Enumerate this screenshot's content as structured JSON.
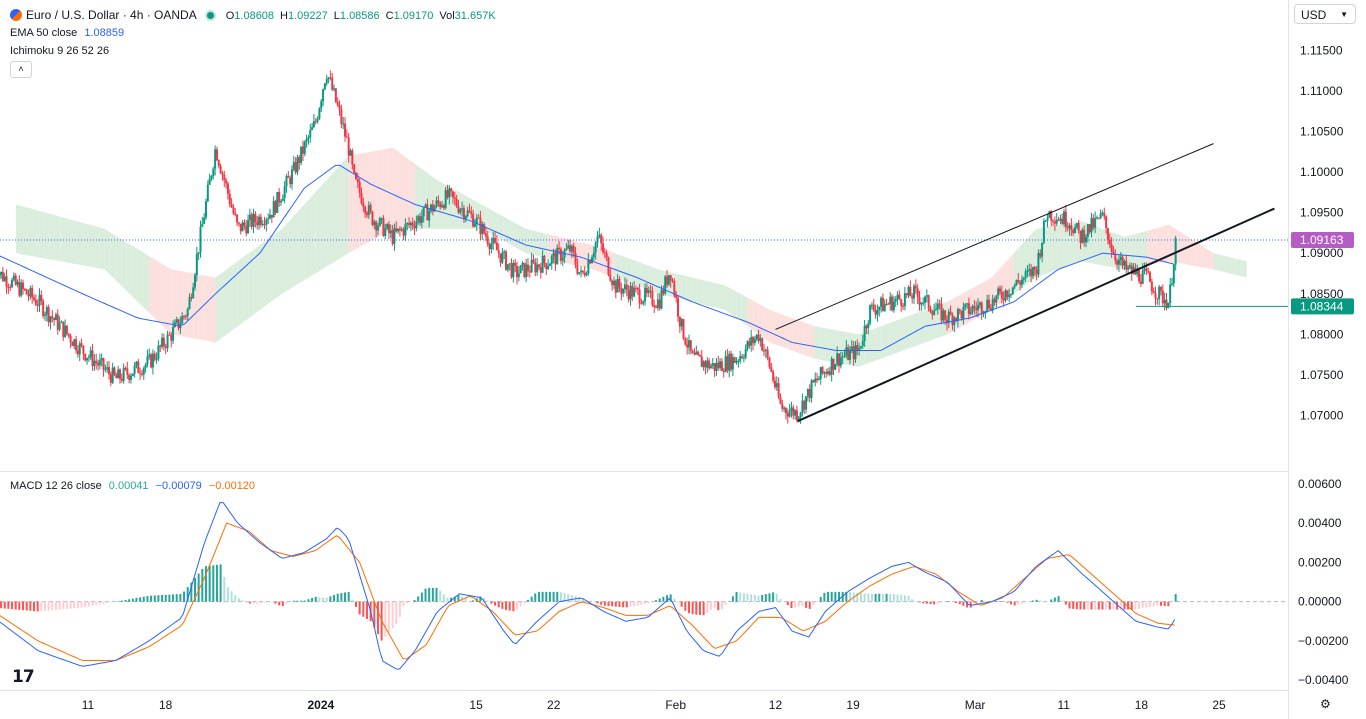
{
  "header": {
    "symbol": "Euro / U.S. Dollar · 4h · OANDA",
    "ohlc": {
      "o_label": "O",
      "o": "1.08608",
      "h_label": "H",
      "h": "1.09227",
      "l_label": "L",
      "l": "1.08586",
      "c_label": "C",
      "c": "1.09170",
      "vol_label": "Vol",
      "vol": "31.657K"
    },
    "ema_label": "EMA 50 close",
    "ema_value": "1.08859",
    "ichimoku_label": "Ichimoku 9 26 52 26",
    "macd_label": "MACD 12 26 close",
    "macd_values": [
      "0.00041",
      "−0.00079",
      "−0.00120"
    ],
    "currency": "USD",
    "collapse_icon": "chevron-up-icon",
    "logo_text": "17",
    "settings_icon": "gear-icon"
  },
  "colors": {
    "up": "#089981",
    "down": "#f23645",
    "ema": "#2962ff",
    "macd": "#2962ff",
    "signal": "#ff6d00",
    "cloud_up": "#cfe8d3",
    "cloud_down": "#fbd5d3",
    "last_price_tag": "#b45cc4",
    "level_tag": "#089981"
  },
  "chart_data": [
    {
      "type": "line",
      "subtype": "candlestick",
      "pair": "EUR/USD",
      "interval": "4h",
      "y_range": [
        1.0655,
        1.1175
      ],
      "y_ticks": [
        "1.11500",
        "1.11000",
        "1.10500",
        "1.10000",
        "1.09500",
        "1.09000",
        "1.08500",
        "1.08000",
        "1.07500",
        "1.07000"
      ],
      "x_labels": [
        "11",
        "18",
        "2024",
        "15",
        "22",
        "Feb",
        "12",
        "19",
        "Mar",
        "11",
        "18",
        "25"
      ],
      "x_label_values": [
        0.5,
        7.5,
        21.5,
        35.5,
        42.5,
        53.5,
        62.5,
        69.5,
        80.5,
        88.5,
        95.5,
        102.5
      ],
      "price_path": [
        [
          -8,
          1.088
        ],
        [
          -4,
          1.084
        ],
        [
          0,
          1.078
        ],
        [
          3,
          1.0745
        ],
        [
          6,
          1.0765
        ],
        [
          8,
          1.08
        ],
        [
          9.5,
          1.083
        ],
        [
          11,
          1.095
        ],
        [
          12,
          1.103
        ],
        [
          14,
          1.093
        ],
        [
          17,
          1.095
        ],
        [
          19,
          1.1
        ],
        [
          21,
          1.106
        ],
        [
          22,
          1.1125
        ],
        [
          23,
          1.108
        ],
        [
          24,
          1.103
        ],
        [
          24.5,
          1.099
        ],
        [
          26,
          1.0945
        ],
        [
          28,
          1.092
        ],
        [
          30,
          1.094
        ],
        [
          33,
          1.097
        ],
        [
          35.5,
          1.094
        ],
        [
          37,
          1.091
        ],
        [
          39,
          1.0875
        ],
        [
          42,
          1.089
        ],
        [
          44,
          1.0905
        ],
        [
          45,
          1.087
        ],
        [
          46.5,
          1.092
        ],
        [
          48,
          1.086
        ],
        [
          50,
          1.085
        ],
        [
          52,
          1.084
        ],
        [
          53,
          1.088
        ],
        [
          54,
          1.081
        ],
        [
          55,
          1.077
        ],
        [
          57,
          1.076
        ],
        [
          59,
          1.077
        ],
        [
          60,
          1.0785
        ],
        [
          61,
          1.08
        ],
        [
          62,
          1.076
        ],
        [
          63,
          1.071
        ],
        [
          64.5,
          1.0703
        ],
        [
          66,
          1.074
        ],
        [
          68,
          1.077
        ],
        [
          70,
          1.078
        ],
        [
          71,
          1.083
        ],
        [
          73,
          1.084
        ],
        [
          75,
          1.085
        ],
        [
          76,
          1.084
        ],
        [
          78,
          1.082
        ],
        [
          80,
          1.083
        ],
        [
          82,
          1.084
        ],
        [
          84,
          1.086
        ],
        [
          86,
          1.088
        ],
        [
          87,
          1.095
        ],
        [
          89,
          1.094
        ],
        [
          90,
          1.092
        ],
        [
          92,
          1.0945
        ],
        [
          93,
          1.09
        ],
        [
          94,
          1.088
        ],
        [
          96,
          1.087
        ],
        [
          97,
          1.085
        ],
        [
          98,
          1.084
        ],
        [
          98.6,
          1.0917
        ]
      ],
      "price_path_note": "",
      "ema50": [
        [
          -8,
          1.09
        ],
        [
          0,
          1.085
        ],
        [
          5,
          1.082
        ],
        [
          9,
          1.081
        ],
        [
          12,
          1.085
        ],
        [
          16,
          1.09
        ],
        [
          20,
          1.098
        ],
        [
          23,
          1.101
        ],
        [
          26,
          1.0985
        ],
        [
          30,
          1.096
        ],
        [
          35,
          1.094
        ],
        [
          40,
          1.091
        ],
        [
          45,
          1.0895
        ],
        [
          50,
          1.087
        ],
        [
          55,
          1.084
        ],
        [
          60,
          1.0815
        ],
        [
          64,
          1.079
        ],
        [
          68,
          1.078
        ],
        [
          72,
          1.078
        ],
        [
          76,
          1.081
        ],
        [
          80,
          1.082
        ],
        [
          84,
          1.084
        ],
        [
          88,
          1.088
        ],
        [
          92,
          1.09
        ],
        [
          96,
          1.0895
        ],
        [
          98.6,
          1.0886
        ]
      ],
      "ichimoku_cloud": {
        "upper": [
          [
            -6,
            1.096
          ],
          [
            2,
            1.093
          ],
          [
            8,
            1.088
          ],
          [
            12,
            1.087
          ],
          [
            18,
            1.093
          ],
          [
            24,
            1.102
          ],
          [
            28,
            1.103
          ],
          [
            32,
            1.099
          ],
          [
            36,
            1.096
          ],
          [
            40,
            1.093
          ],
          [
            46,
            1.091
          ],
          [
            52,
            1.088
          ],
          [
            58,
            1.086
          ],
          [
            62,
            1.083
          ],
          [
            66,
            1.081
          ],
          [
            70,
            1.08
          ],
          [
            74,
            1.082
          ],
          [
            78,
            1.084
          ],
          [
            82,
            1.087
          ],
          [
            86,
            1.093
          ],
          [
            90,
            1.094
          ],
          [
            94,
            1.092
          ],
          [
            98,
            1.0935
          ],
          [
            102,
            1.09
          ],
          [
            105,
            1.089
          ]
        ],
        "lower": [
          [
            -6,
            1.09
          ],
          [
            2,
            1.088
          ],
          [
            8,
            1.08
          ],
          [
            12,
            1.079
          ],
          [
            18,
            1.085
          ],
          [
            24,
            1.09
          ],
          [
            28,
            1.093
          ],
          [
            32,
            1.093
          ],
          [
            36,
            1.093
          ],
          [
            40,
            1.09
          ],
          [
            46,
            1.088
          ],
          [
            52,
            1.085
          ],
          [
            58,
            1.083
          ],
          [
            62,
            1.079
          ],
          [
            66,
            1.077
          ],
          [
            70,
            1.076
          ],
          [
            74,
            1.078
          ],
          [
            78,
            1.08
          ],
          [
            82,
            1.083
          ],
          [
            86,
            1.087
          ],
          [
            90,
            1.089
          ],
          [
            94,
            1.088
          ],
          [
            98,
            1.089
          ],
          [
            102,
            1.088
          ],
          [
            105,
            1.087
          ]
        ]
      },
      "channel_upper": [
        [
          62.5,
          1.0806
        ],
        [
          102,
          1.1035
        ]
      ],
      "channel_lower": [
        [
          64.5,
          1.0693
        ],
        [
          107.5,
          1.0955
        ]
      ],
      "last_price": "1.09163",
      "last_price_value": 1.09163,
      "level_label": "1.08344",
      "level_value": 1.08344,
      "level_from_x": 95
    },
    {
      "type": "line",
      "subtype": "macd-with-histogram",
      "y_range": [
        -0.0045,
        0.0063
      ],
      "y_ticks": [
        "0.00600",
        "0.00400",
        "0.00200",
        "0.00000",
        "−0.00200",
        "−0.00400"
      ],
      "macd": [
        [
          -8,
          -0.0008
        ],
        [
          -4,
          -0.0025
        ],
        [
          0,
          -0.0033
        ],
        [
          3,
          -0.003
        ],
        [
          6,
          -0.002
        ],
        [
          9,
          -0.0008
        ],
        [
          11,
          0.003
        ],
        [
          12.5,
          0.0052
        ],
        [
          14,
          0.004
        ],
        [
          16,
          0.003
        ],
        [
          18,
          0.0022
        ],
        [
          20,
          0.0025
        ],
        [
          22,
          0.0032
        ],
        [
          23,
          0.0038
        ],
        [
          24,
          0.0032
        ],
        [
          26,
          -0.0005
        ],
        [
          27,
          -0.003
        ],
        [
          28.5,
          -0.0035
        ],
        [
          30,
          -0.0025
        ],
        [
          32,
          -0.0005
        ],
        [
          34,
          0.0004
        ],
        [
          36,
          0.0002
        ],
        [
          38,
          -0.0015
        ],
        [
          39,
          -0.0022
        ],
        [
          41,
          -0.001
        ],
        [
          43,
          0.0
        ],
        [
          45,
          0.0002
        ],
        [
          47,
          -0.0005
        ],
        [
          49,
          -0.001
        ],
        [
          51,
          -0.0008
        ],
        [
          53,
          0.0002
        ],
        [
          54.5,
          -0.0015
        ],
        [
          56,
          -0.0025
        ],
        [
          57.5,
          -0.0028
        ],
        [
          59,
          -0.0015
        ],
        [
          61,
          -0.0005
        ],
        [
          62.5,
          -0.0003
        ],
        [
          64,
          -0.0015
        ],
        [
          65.5,
          -0.0018
        ],
        [
          67,
          -0.0005
        ],
        [
          69,
          0.0005
        ],
        [
          71,
          0.0012
        ],
        [
          73,
          0.0018
        ],
        [
          74.5,
          0.002
        ],
        [
          76,
          0.0015
        ],
        [
          78,
          0.001
        ],
        [
          80,
          -0.0002
        ],
        [
          82,
          0.0
        ],
        [
          84,
          0.0005
        ],
        [
          86,
          0.0018
        ],
        [
          88,
          0.0026
        ],
        [
          90,
          0.0015
        ],
        [
          92,
          0.0005
        ],
        [
          94,
          -0.0005
        ],
        [
          95,
          -0.001
        ],
        [
          97,
          -0.0013
        ],
        [
          98,
          -0.0014
        ],
        [
          98.6,
          -0.0008
        ]
      ],
      "signal": [
        [
          -8,
          -0.0005
        ],
        [
          -4,
          -0.002
        ],
        [
          0,
          -0.003
        ],
        [
          3,
          -0.003
        ],
        [
          6,
          -0.0023
        ],
        [
          9,
          -0.0012
        ],
        [
          11,
          0.0012
        ],
        [
          13,
          0.004
        ],
        [
          15,
          0.0036
        ],
        [
          17,
          0.0026
        ],
        [
          19,
          0.0023
        ],
        [
          21,
          0.0026
        ],
        [
          23,
          0.0034
        ],
        [
          25,
          0.002
        ],
        [
          27,
          -0.001
        ],
        [
          29,
          -0.003
        ],
        [
          31,
          -0.0022
        ],
        [
          33,
          -0.0002
        ],
        [
          35,
          0.0003
        ],
        [
          37,
          -0.0005
        ],
        [
          39,
          -0.0017
        ],
        [
          41,
          -0.0015
        ],
        [
          43,
          -0.0005
        ],
        [
          45,
          0.0
        ],
        [
          47,
          -0.0003
        ],
        [
          49,
          -0.0007
        ],
        [
          51,
          -0.0007
        ],
        [
          53,
          -0.0002
        ],
        [
          55,
          -0.0012
        ],
        [
          57,
          -0.0024
        ],
        [
          59,
          -0.002
        ],
        [
          61,
          -0.0008
        ],
        [
          63,
          -0.0008
        ],
        [
          65,
          -0.0015
        ],
        [
          67,
          -0.001
        ],
        [
          69,
          0.0
        ],
        [
          71,
          0.0008
        ],
        [
          73,
          0.0014
        ],
        [
          75,
          0.0018
        ],
        [
          77,
          0.0014
        ],
        [
          79,
          0.0005
        ],
        [
          81,
          -0.0002
        ],
        [
          83,
          0.0002
        ],
        [
          85,
          0.0012
        ],
        [
          87,
          0.0022
        ],
        [
          89,
          0.0024
        ],
        [
          91,
          0.0014
        ],
        [
          93,
          0.0004
        ],
        [
          95,
          -0.0006
        ],
        [
          97,
          -0.0011
        ],
        [
          98.6,
          -0.0012
        ]
      ],
      "histogram_note": "",
      "zero_line": 0
    }
  ]
}
